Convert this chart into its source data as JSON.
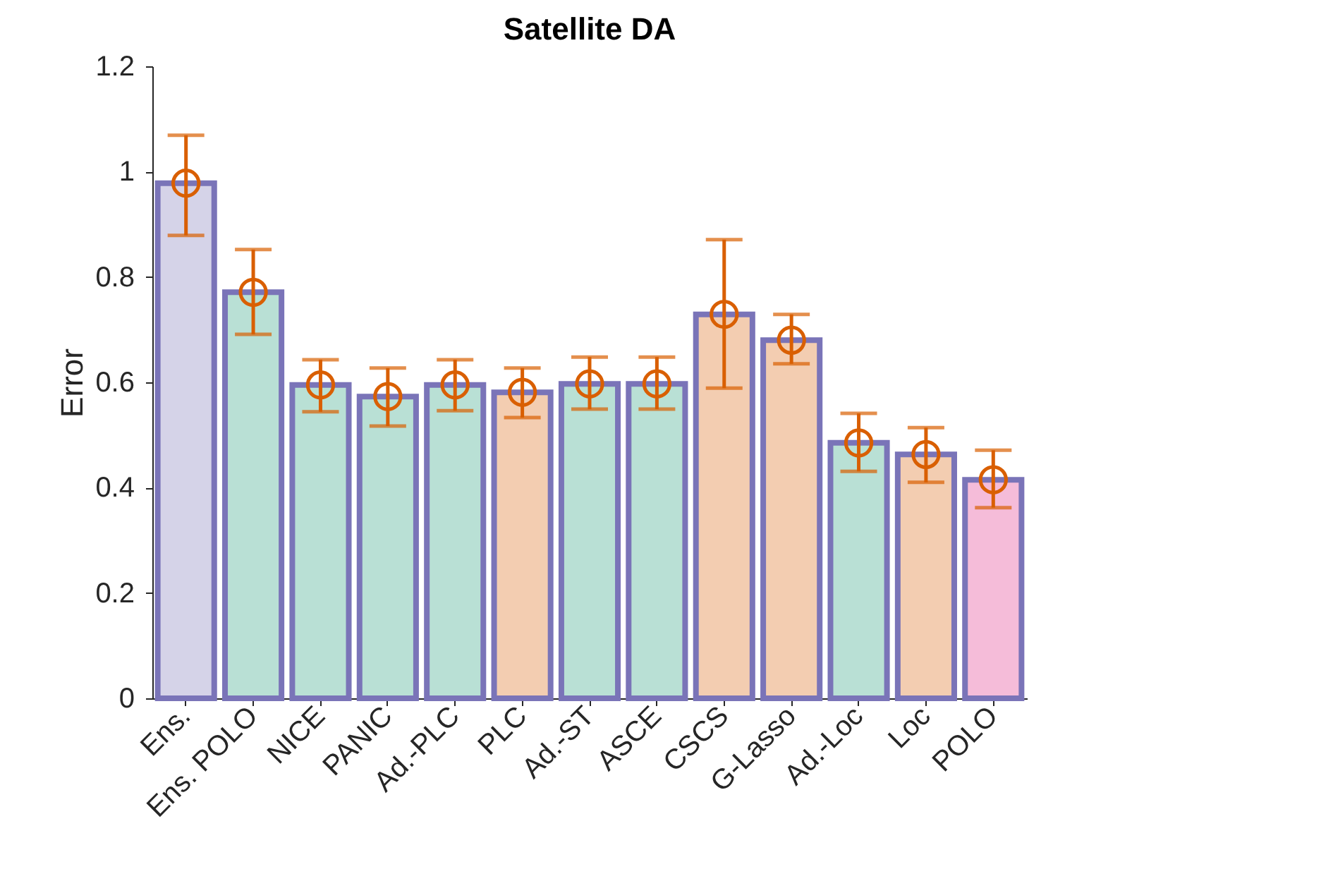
{
  "chart_data": {
    "type": "bar",
    "title": "Satellite DA",
    "ylabel": "Error",
    "categories": [
      "Ens.",
      "Ens. POLO",
      "NICE",
      "PANIC",
      "Ad.-PLC",
      "PLC",
      "Ad.-ST",
      "ASCE",
      "CSCS",
      "G-Lasso",
      "Ad.-Loc",
      "Loc",
      "POLO"
    ],
    "series": [
      {
        "colors": [
          "#d5d3e8",
          "#b9e0d5",
          "#b9e0d5",
          "#b9e0d5",
          "#b9e0d5",
          "#f3cdb1",
          "#b9e0d5",
          "#b9e0d5",
          "#f3cdb1",
          "#f3cdb1",
          "#b9e0d5",
          "#f3cdb1",
          "#f5bcd9"
        ],
        "values": [
          0.978,
          0.771,
          0.595,
          0.573,
          0.595,
          0.581,
          0.597,
          0.597,
          0.729,
          0.68,
          0.485,
          0.463,
          0.415
        ]
      },
      {
        "type": "scatter",
        "color": "#d95f02",
        "marker": "circle",
        "x": [
          "Ens.",
          "Ens. POLO",
          "NICE",
          "PANIC",
          "Ad.-PLC",
          "PLC",
          "Ad.-ST",
          "ASCE",
          "CSCS",
          "G-Lasso",
          "Ad.-Loc",
          "Loc",
          "POLO"
        ],
        "values": [
          0.978,
          0.771,
          0.595,
          0.573,
          0.595,
          0.581,
          0.597,
          0.597,
          0.729,
          0.68,
          0.485,
          0.463,
          0.415
        ],
        "errors": [
          [
            0.879,
            1.069
          ],
          [
            0.691,
            0.852
          ],
          [
            0.544,
            0.643
          ],
          [
            0.517,
            0.627
          ],
          [
            0.546,
            0.643
          ],
          [
            0.533,
            0.627
          ],
          [
            0.549,
            0.648
          ],
          [
            0.549,
            0.648
          ],
          [
            0.589,
            0.871
          ],
          [
            0.635,
            0.729
          ],
          [
            0.431,
            0.541
          ],
          [
            0.41,
            0.514
          ],
          [
            0.362,
            0.471
          ]
        ]
      }
    ],
    "ylim": [
      0,
      1.2
    ],
    "yticks": [
      0,
      0.2,
      0.4,
      0.6,
      0.8,
      1,
      1.2
    ],
    "grid": false
  }
}
